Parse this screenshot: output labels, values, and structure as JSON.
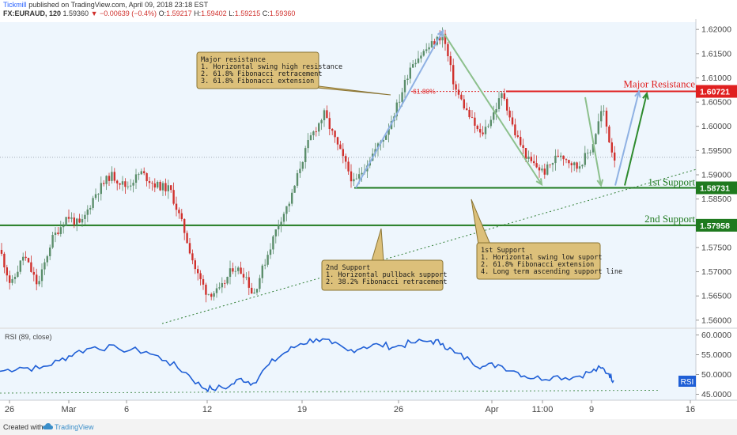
{
  "header": {
    "publisher": "Tickmill",
    "published_text": "published on TradingView.com, April 09, 2018 23:18 EST",
    "symbol": "FX:EURAUD, 120",
    "last": "1.59360",
    "change": "▼ −0.00639 (−0.4%)",
    "ohlc": {
      "O": "1.59217",
      "H": "1.59402",
      "L": "1.59215",
      "C": "1.59360"
    },
    "ohlc_labels": {
      "O": "O:",
      "H": "H:",
      "L": "L:",
      "C": "C:"
    }
  },
  "footer": {
    "created_with": "Created with",
    "brand": "TradingView"
  },
  "colors": {
    "up": "#5b8e6b",
    "down": "#d0312d",
    "resistance": "#e02020",
    "support": "#1f7a1f",
    "rsi": "#1f5fd6",
    "callout_bg": "#dcc07a",
    "callout_border": "#8a7433",
    "arrow_green": "#8cc08c",
    "arrow_blue": "#8fb1e3"
  },
  "chart_data": [
    {
      "type": "candlestick",
      "price_axis": {
        "ticks": [
          "1.62000",
          "1.61500",
          "1.61000",
          "1.60500",
          "1.60000",
          "1.59500",
          "1.59000",
          "1.58500",
          "1.58000",
          "1.57500",
          "1.57000",
          "1.56500",
          "1.56000"
        ],
        "ylim": [
          1.5585,
          1.6215
        ]
      },
      "time_axis": {
        "ticks": [
          "26",
          "Mar",
          "6",
          "12",
          "19",
          "26",
          "Apr",
          "11:00",
          "9",
          "16"
        ]
      },
      "price_labels": [
        {
          "value": "1.60721",
          "color": "#e02020"
        },
        {
          "value": "1.58731",
          "color": "#1f7a1f"
        },
        {
          "value": "1.57958",
          "color": "#1f7a1f"
        }
      ],
      "levels": [
        {
          "name": "Major Resistance",
          "value": 1.60721
        },
        {
          "name": "1st Support",
          "value": 1.58731
        },
        {
          "name": "2nd Support",
          "value": 1.57958
        }
      ],
      "fib_label": "61.80%",
      "callouts": [
        {
          "title": "Major resistance",
          "lines": [
            "1. Horizontal swing high resistance",
            "2. 61.8% Fibonacci retracement",
            "3. 61.8% Fibonacci extension"
          ]
        },
        {
          "title": "2nd Support",
          "lines": [
            "1. Horizontal pullback support",
            "2. 38.2% Fibonacci retracement"
          ]
        },
        {
          "title": "1st Support",
          "lines": [
            "1. Horizontal swing low suport",
            "2. 61.8% Fibonacci extension",
            "4. Long term ascending support line"
          ]
        }
      ],
      "anchors": [
        {
          "x": 0,
          "y": 1.5745
        },
        {
          "x": 14,
          "y": 1.567
        },
        {
          "x": 30,
          "y": 1.5735
        },
        {
          "x": 48,
          "y": 1.567
        },
        {
          "x": 65,
          "y": 1.5765
        },
        {
          "x": 85,
          "y": 1.5815
        },
        {
          "x": 102,
          "y": 1.5795
        },
        {
          "x": 120,
          "y": 1.586
        },
        {
          "x": 140,
          "y": 1.59
        },
        {
          "x": 160,
          "y": 1.5875
        },
        {
          "x": 178,
          "y": 1.5905
        },
        {
          "x": 195,
          "y": 1.588
        },
        {
          "x": 215,
          "y": 1.587
        },
        {
          "x": 232,
          "y": 1.579
        },
        {
          "x": 248,
          "y": 1.57
        },
        {
          "x": 262,
          "y": 1.5655
        },
        {
          "x": 278,
          "y": 1.566
        },
        {
          "x": 295,
          "y": 1.571
        },
        {
          "x": 310,
          "y": 1.5695
        },
        {
          "x": 320,
          "y": 1.565
        },
        {
          "x": 335,
          "y": 1.572
        },
        {
          "x": 352,
          "y": 1.58
        },
        {
          "x": 368,
          "y": 1.585
        },
        {
          "x": 380,
          "y": 1.592
        },
        {
          "x": 392,
          "y": 1.5975
        },
        {
          "x": 410,
          "y": 1.6025
        },
        {
          "x": 428,
          "y": 1.5955
        },
        {
          "x": 448,
          "y": 1.588
        },
        {
          "x": 468,
          "y": 1.5935
        },
        {
          "x": 488,
          "y": 1.5985
        },
        {
          "x": 505,
          "y": 1.6055
        },
        {
          "x": 520,
          "y": 1.613
        },
        {
          "x": 540,
          "y": 1.616
        },
        {
          "x": 560,
          "y": 1.619
        },
        {
          "x": 575,
          "y": 1.608
        },
        {
          "x": 592,
          "y": 1.6025
        },
        {
          "x": 608,
          "y": 1.598
        },
        {
          "x": 622,
          "y": 1.602
        },
        {
          "x": 636,
          "y": 1.607
        },
        {
          "x": 650,
          "y": 1.599
        },
        {
          "x": 668,
          "y": 1.593
        },
        {
          "x": 688,
          "y": 1.5905
        },
        {
          "x": 708,
          "y": 1.5945
        },
        {
          "x": 730,
          "y": 1.5915
        },
        {
          "x": 748,
          "y": 1.5955
        },
        {
          "x": 762,
          "y": 1.604
        },
        {
          "x": 770,
          "y": 1.5975
        },
        {
          "x": 776,
          "y": 1.5936
        }
      ]
    },
    {
      "type": "line",
      "title": "RSI (89, close)",
      "badge": "RSI",
      "y_ticks": [
        "60.0000",
        "55.0000",
        "50.0000",
        "45.0000"
      ],
      "ylim": [
        43.5,
        61.5
      ],
      "anchors": [
        {
          "x": 0,
          "y": 50.8
        },
        {
          "x": 25,
          "y": 51.8
        },
        {
          "x": 50,
          "y": 51.5
        },
        {
          "x": 75,
          "y": 53.5
        },
        {
          "x": 95,
          "y": 55.5
        },
        {
          "x": 120,
          "y": 57.0
        },
        {
          "x": 150,
          "y": 56.5
        },
        {
          "x": 185,
          "y": 55.8
        },
        {
          "x": 210,
          "y": 53.5
        },
        {
          "x": 235,
          "y": 50.5
        },
        {
          "x": 255,
          "y": 46.8
        },
        {
          "x": 268,
          "y": 46.3
        },
        {
          "x": 290,
          "y": 47.0
        },
        {
          "x": 305,
          "y": 49.0
        },
        {
          "x": 320,
          "y": 47.8
        },
        {
          "x": 340,
          "y": 52.5
        },
        {
          "x": 360,
          "y": 55.5
        },
        {
          "x": 380,
          "y": 57.8
        },
        {
          "x": 400,
          "y": 59.0
        },
        {
          "x": 420,
          "y": 57.8
        },
        {
          "x": 440,
          "y": 56.0
        },
        {
          "x": 460,
          "y": 57.0
        },
        {
          "x": 480,
          "y": 57.5
        },
        {
          "x": 500,
          "y": 57.0
        },
        {
          "x": 520,
          "y": 58.0
        },
        {
          "x": 545,
          "y": 58.5
        },
        {
          "x": 560,
          "y": 57.8
        },
        {
          "x": 575,
          "y": 55.5
        },
        {
          "x": 595,
          "y": 53.5
        },
        {
          "x": 610,
          "y": 52.0
        },
        {
          "x": 630,
          "y": 52.5
        },
        {
          "x": 655,
          "y": 50.5
        },
        {
          "x": 675,
          "y": 49.0
        },
        {
          "x": 700,
          "y": 49.5
        },
        {
          "x": 725,
          "y": 49.3
        },
        {
          "x": 745,
          "y": 50.5
        },
        {
          "x": 760,
          "y": 51.6
        },
        {
          "x": 770,
          "y": 50.2
        },
        {
          "x": 776,
          "y": 48.5
        }
      ]
    }
  ]
}
